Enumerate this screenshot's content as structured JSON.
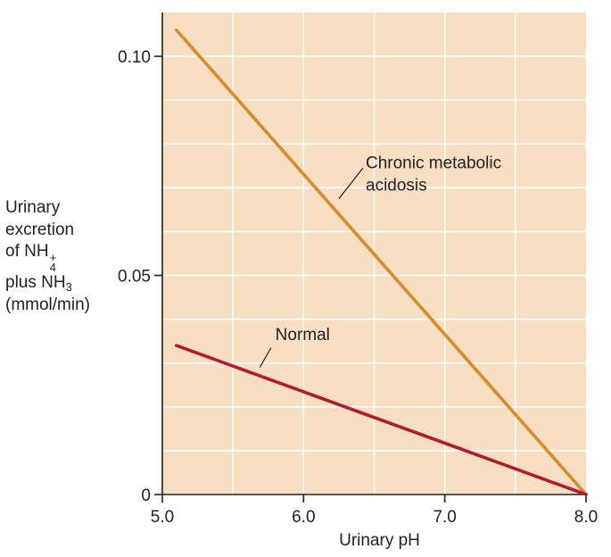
{
  "colors": {
    "plot_background": "#f8dfc4",
    "grid": "#ffffff",
    "axis": "#231f20",
    "chronic_line": "#d98b2b",
    "normal_line": "#b5192f",
    "text": "#231f20"
  },
  "chart_data": {
    "type": "line",
    "title": "",
    "xlabel": "Urinary pH",
    "ylabel_lines": [
      "Urinary",
      "excretion",
      "of NH",
      "plus NH",
      "(mmol/min)"
    ],
    "ylabel_chem": {
      "of_nh4_sub": "4",
      "of_nh4_sup": "+",
      "plus_nh3_sub": "3"
    },
    "xlim": [
      5.0,
      8.0
    ],
    "ylim": [
      0,
      0.11
    ],
    "x_ticks": [
      {
        "value": 5.0,
        "label": "5.0"
      },
      {
        "value": 6.0,
        "label": "6.0"
      },
      {
        "value": 7.0,
        "label": "7.0"
      },
      {
        "value": 8.0,
        "label": "8.0"
      }
    ],
    "y_ticks": [
      {
        "value": 0,
        "label": "0"
      },
      {
        "value": 0.05,
        "label": "0.05"
      },
      {
        "value": 0.1,
        "label": "0.10"
      }
    ],
    "x_grid": [
      5.5,
      6.0,
      6.5,
      7.0,
      7.5
    ],
    "y_grid": [
      0.01,
      0.02,
      0.03,
      0.04,
      0.05,
      0.06,
      0.07,
      0.08,
      0.09,
      0.1
    ],
    "grid": true,
    "series": [
      {
        "key": "chronic",
        "annotation": [
          "Chronic metabolic",
          "acidosis"
        ],
        "points": [
          [
            5.1,
            0.106
          ],
          [
            8.0,
            0.0
          ]
        ],
        "leader": [
          [
            6.25,
            0.0675
          ],
          [
            6.42,
            0.0745
          ]
        ],
        "label_at": [
          6.44,
          0.0745
        ]
      },
      {
        "key": "normal",
        "annotation": [
          "Normal"
        ],
        "points": [
          [
            5.1,
            0.034
          ],
          [
            8.0,
            0.0
          ]
        ],
        "leader": [
          [
            5.69,
            0.029
          ],
          [
            5.77,
            0.0335
          ]
        ],
        "label_at": [
          5.8,
          0.0352
        ]
      }
    ]
  }
}
